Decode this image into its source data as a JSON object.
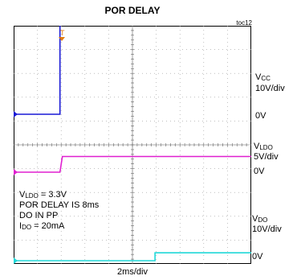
{
  "title": "POR DELAY",
  "figure_id": "toc12",
  "time_scale": "2ms/div",
  "notes": {
    "ldo_label": "V",
    "ldo_sub": "LDO",
    "ldo_value": " = 3.3V",
    "line2": "POR DELAY IS 8ms",
    "line3": "DO IN PP",
    "ido_label": "I",
    "ido_sub": "DO",
    "ido_value": " = 20mA"
  },
  "channels": [
    {
      "name_main": "V",
      "name_sub": "CC",
      "scale": "10V/div",
      "zero_label": "0V",
      "color": "#1a1ad6"
    },
    {
      "name_main": "V",
      "name_sub": "LDO",
      "scale": "5V/div",
      "zero_label": "0V",
      "color": "#e020d0"
    },
    {
      "name_main": "V",
      "name_sub": "DO",
      "scale": "10V/div",
      "zero_label": "0V",
      "color": "#20d8d8"
    }
  ],
  "chart_data": {
    "type": "line",
    "title": "POR DELAY",
    "xlabel": "2ms/div",
    "x_unit": "ms",
    "xlim": [
      0,
      20
    ],
    "grid": true,
    "series": [
      {
        "name": "VCC",
        "x": [
          0,
          3.9,
          3.9,
          20
        ],
        "values": [
          0,
          0,
          40,
          40
        ]
      },
      {
        "name": "VLDO",
        "x": [
          0,
          3.9,
          4.1,
          20
        ],
        "values": [
          0,
          0,
          3.3,
          3.3
        ]
      },
      {
        "name": "VDO",
        "x": [
          0,
          11.9,
          11.9,
          20
        ],
        "values": [
          0,
          0,
          3.3,
          3.3
        ]
      }
    ]
  }
}
